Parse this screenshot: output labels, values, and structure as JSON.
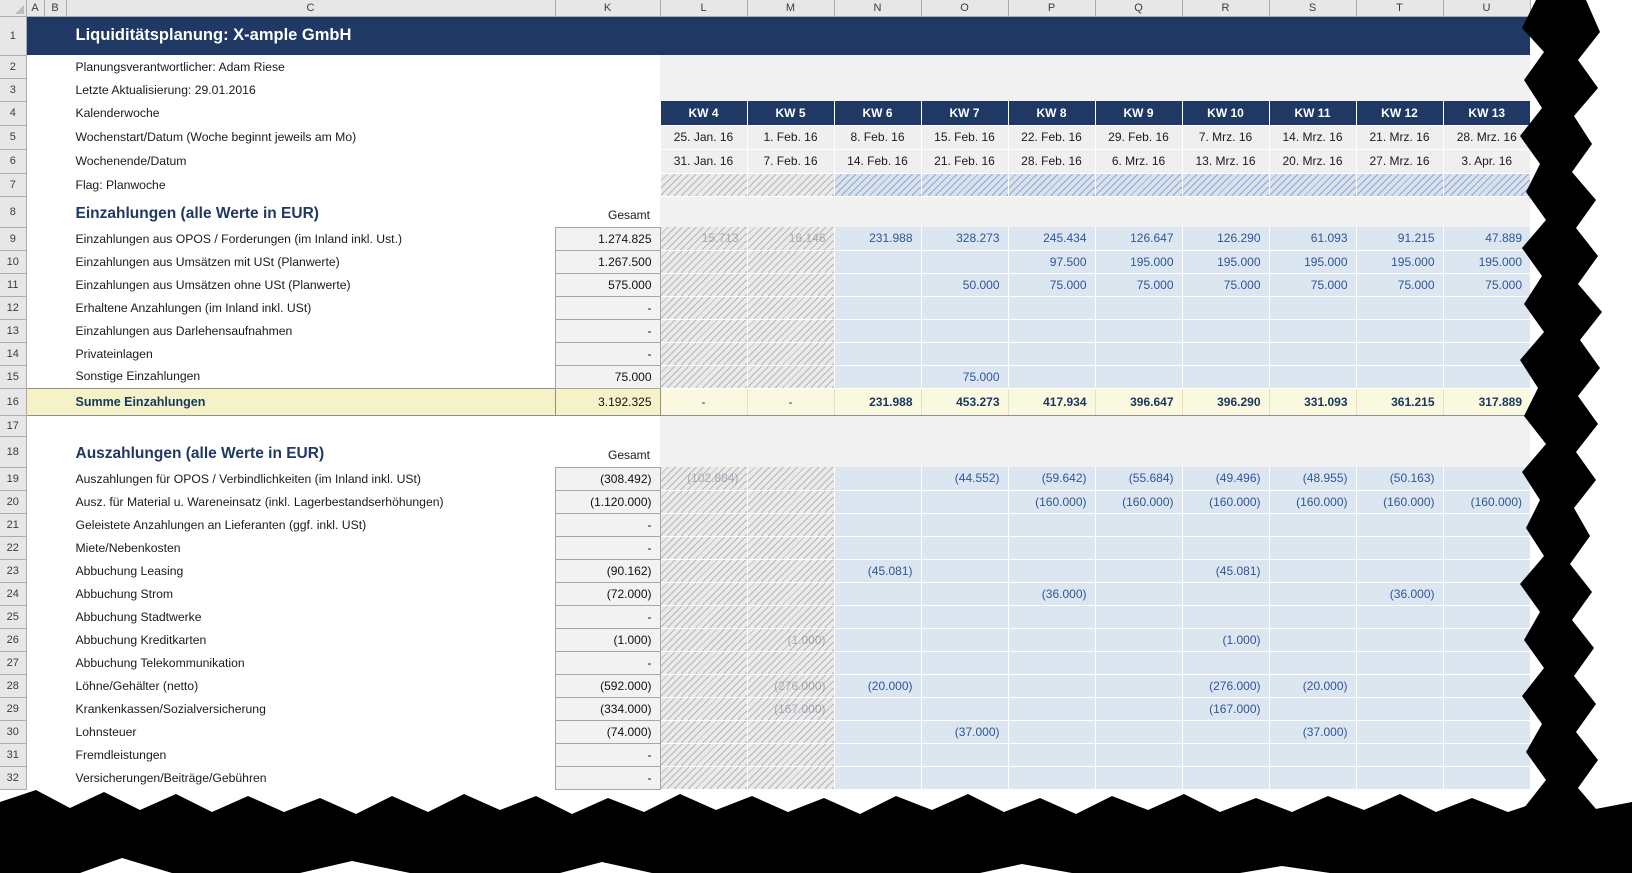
{
  "colors": {
    "navy": "#1F3864",
    "value_blue": "#2F5597",
    "data_blue_bg": "#DCE6F1",
    "sum_yellow_bg": "#FAF8DF",
    "sum_label_bg": "#F5F2C8",
    "gesamt_bg": "#F2F2F2",
    "band_gray": "#F1F1F1",
    "header_gray": "#E7E7E7",
    "tear_black": "#000000"
  },
  "sheet": {
    "title": "Liquiditätsplanung: X-ample GmbH",
    "col_headers": [
      "A",
      "B",
      "C",
      "K",
      "L",
      "M",
      "N",
      "O",
      "P",
      "Q",
      "R",
      "S",
      "T",
      "U"
    ],
    "rows": [
      {
        "n": 1,
        "type": "title",
        "label": "Liquiditätsplanung: X-ample GmbH"
      },
      {
        "n": 2,
        "type": "info",
        "label": "Planungsverantwortlicher: Adam Riese"
      },
      {
        "n": 3,
        "type": "info",
        "label": "Letzte Aktualisierung: 29.01.2016"
      },
      {
        "n": 4,
        "type": "kw",
        "label": "Kalenderwoche",
        "cells": [
          "KW 4",
          "KW 5",
          "KW 6",
          "KW 7",
          "KW 8",
          "KW 9",
          "KW 10",
          "KW 11",
          "KW 12",
          "KW 13"
        ]
      },
      {
        "n": 5,
        "type": "date",
        "label": "Wochenstart/Datum  (Woche beginnt jeweils am Mo)",
        "cells": [
          "25. Jan. 16",
          "1. Feb. 16",
          "8. Feb. 16",
          "15. Feb. 16",
          "22. Feb. 16",
          "29. Feb. 16",
          "7. Mrz. 16",
          "14. Mrz. 16",
          "21. Mrz. 16",
          "28. Mrz. 16"
        ]
      },
      {
        "n": 6,
        "type": "date",
        "label": "Wochenende/Datum",
        "cells": [
          "31. Jan. 16",
          "7. Feb. 16",
          "14. Feb. 16",
          "21. Feb. 16",
          "28. Feb. 16",
          "6. Mrz. 16",
          "13. Mrz. 16",
          "20. Mrz. 16",
          "27. Mrz. 16",
          "3. Apr. 16"
        ]
      },
      {
        "n": 7,
        "type": "flag",
        "label": "Flag: Planwoche"
      },
      {
        "n": 8,
        "type": "section",
        "label": "Einzahlungen (alle Werte in EUR)",
        "gesamt": "Gesamt"
      },
      {
        "n": 9,
        "type": "data",
        "label": "Einzahlungen aus OPOS / Forderungen (im Inland inkl. Ust.)",
        "total": "1.274.825",
        "cells": [
          "",
          "",
          "231.988",
          "328.273",
          "245.434",
          "126.647",
          "126.290",
          "61.093",
          "91.215",
          "47.889"
        ],
        "faint": {
          "0": "15.713",
          "1": "16.146"
        }
      },
      {
        "n": 10,
        "type": "data",
        "label": "Einzahlungen aus Umsätzen mit USt (Planwerte)",
        "total": "1.267.500",
        "cells": [
          "",
          "",
          "",
          "",
          "97.500",
          "195.000",
          "195.000",
          "195.000",
          "195.000",
          "195.000"
        ]
      },
      {
        "n": 11,
        "type": "data",
        "label": "Einzahlungen aus Umsätzen ohne USt (Planwerte)",
        "total": "575.000",
        "cells": [
          "",
          "",
          "",
          "50.000",
          "75.000",
          "75.000",
          "75.000",
          "75.000",
          "75.000",
          "75.000"
        ]
      },
      {
        "n": 12,
        "type": "data",
        "label": "Erhaltene Anzahlungen (im Inland inkl. USt)",
        "total": "-",
        "cells": [
          "",
          "",
          "",
          "",
          "",
          "",
          "",
          "",
          "",
          ""
        ]
      },
      {
        "n": 13,
        "type": "data",
        "label": "Einzahlungen aus Darlehensaufnahmen",
        "total": "-",
        "cells": [
          "",
          "",
          "",
          "",
          "",
          "",
          "",
          "",
          "",
          ""
        ]
      },
      {
        "n": 14,
        "type": "data",
        "label": "Privateinlagen",
        "total": "-",
        "cells": [
          "",
          "",
          "",
          "",
          "",
          "",
          "",
          "",
          "",
          ""
        ]
      },
      {
        "n": 15,
        "type": "data",
        "label": "Sonstige Einzahlungen",
        "total": "75.000",
        "cells": [
          "",
          "",
          "",
          "75.000",
          "",
          "",
          "",
          "",
          "",
          ""
        ]
      },
      {
        "n": 16,
        "type": "sum",
        "label": "Summe Einzahlungen",
        "total": "3.192.325",
        "cells": [
          "-",
          "-",
          "231.988",
          "453.273",
          "417.934",
          "396.647",
          "396.290",
          "331.093",
          "361.215",
          "317.889"
        ]
      },
      {
        "n": 17,
        "type": "blank"
      },
      {
        "n": 18,
        "type": "section",
        "label": "Auszahlungen (alle Werte in EUR)",
        "gesamt": "Gesamt"
      },
      {
        "n": 19,
        "type": "data",
        "label": "Auszahlungen für OPOS / Verbindlichkeiten (im Inland inkl. USt)",
        "total": "(308.492)",
        "cells": [
          "",
          "",
          "",
          "(44.552)",
          "(59.642)",
          "(55.684)",
          "(49.496)",
          "(48.955)",
          "(50.163)",
          ""
        ],
        "faint": {
          "0": "(102.884)"
        }
      },
      {
        "n": 20,
        "type": "data",
        "label": "Ausz. für Material u. Wareneinsatz (inkl. Lagerbestandserhöhungen)",
        "total": "(1.120.000)",
        "cells": [
          "",
          "",
          "",
          "",
          "(160.000)",
          "(160.000)",
          "(160.000)",
          "(160.000)",
          "(160.000)",
          "(160.000)"
        ]
      },
      {
        "n": 21,
        "type": "data",
        "label": "Geleistete Anzahlungen an Lieferanten (ggf. inkl. USt)",
        "total": "-",
        "cells": [
          "",
          "",
          "",
          "",
          "",
          "",
          "",
          "",
          "",
          ""
        ]
      },
      {
        "n": 22,
        "type": "data",
        "label": "Miete/Nebenkosten",
        "total": "-",
        "cells": [
          "",
          "",
          "",
          "",
          "",
          "",
          "",
          "",
          "",
          ""
        ]
      },
      {
        "n": 23,
        "type": "data",
        "label": "Abbuchung Leasing",
        "total": "(90.162)",
        "cells": [
          "",
          "",
          "(45.081)",
          "",
          "",
          "",
          "(45.081)",
          "",
          "",
          ""
        ]
      },
      {
        "n": 24,
        "type": "data",
        "label": "Abbuchung Strom",
        "total": "(72.000)",
        "cells": [
          "",
          "",
          "",
          "",
          "(36.000)",
          "",
          "",
          "",
          "(36.000)",
          ""
        ]
      },
      {
        "n": 25,
        "type": "data",
        "label": "Abbuchung Stadtwerke",
        "total": "-",
        "cells": [
          "",
          "",
          "",
          "",
          "",
          "",
          "",
          "",
          "",
          ""
        ]
      },
      {
        "n": 26,
        "type": "data",
        "label": "Abbuchung Kreditkarten",
        "total": "(1.000)",
        "cells": [
          "",
          "",
          "",
          "",
          "",
          "",
          "(1.000)",
          "",
          "",
          ""
        ],
        "faint": {
          "1": "(1.000)"
        }
      },
      {
        "n": 27,
        "type": "data",
        "label": "Abbuchung Telekommunikation",
        "total": "-",
        "cells": [
          "",
          "",
          "",
          "",
          "",
          "",
          "",
          "",
          "",
          ""
        ]
      },
      {
        "n": 28,
        "type": "data",
        "label": "Löhne/Gehälter (netto)",
        "total": "(592.000)",
        "cells": [
          "",
          "",
          "(20.000)",
          "",
          "",
          "",
          "(276.000)",
          "(20.000)",
          "",
          ""
        ],
        "faint": {
          "1": "(276.000)"
        }
      },
      {
        "n": 29,
        "type": "data",
        "label": "Krankenkassen/Sozialversicherung",
        "total": "(334.000)",
        "cells": [
          "",
          "",
          "",
          "",
          "",
          "",
          "(167.000)",
          "",
          "",
          ""
        ],
        "faint": {
          "1": "(167.000)"
        }
      },
      {
        "n": 30,
        "type": "data",
        "label": "Lohnsteuer",
        "total": "(74.000)",
        "cells": [
          "",
          "",
          "",
          "(37.000)",
          "",
          "",
          "",
          "(37.000)",
          "",
          ""
        ]
      },
      {
        "n": 31,
        "type": "data",
        "label": "Fremdleistungen",
        "total": "-",
        "cells": [
          "",
          "",
          "",
          "",
          "",
          "",
          "",
          "",
          "",
          ""
        ]
      },
      {
        "n": 32,
        "type": "data",
        "label": "Versicherungen/Beiträge/Gebühren",
        "total": "-",
        "cells": [
          "",
          "",
          "",
          "",
          "",
          "",
          "",
          "",
          "",
          ""
        ]
      }
    ]
  }
}
